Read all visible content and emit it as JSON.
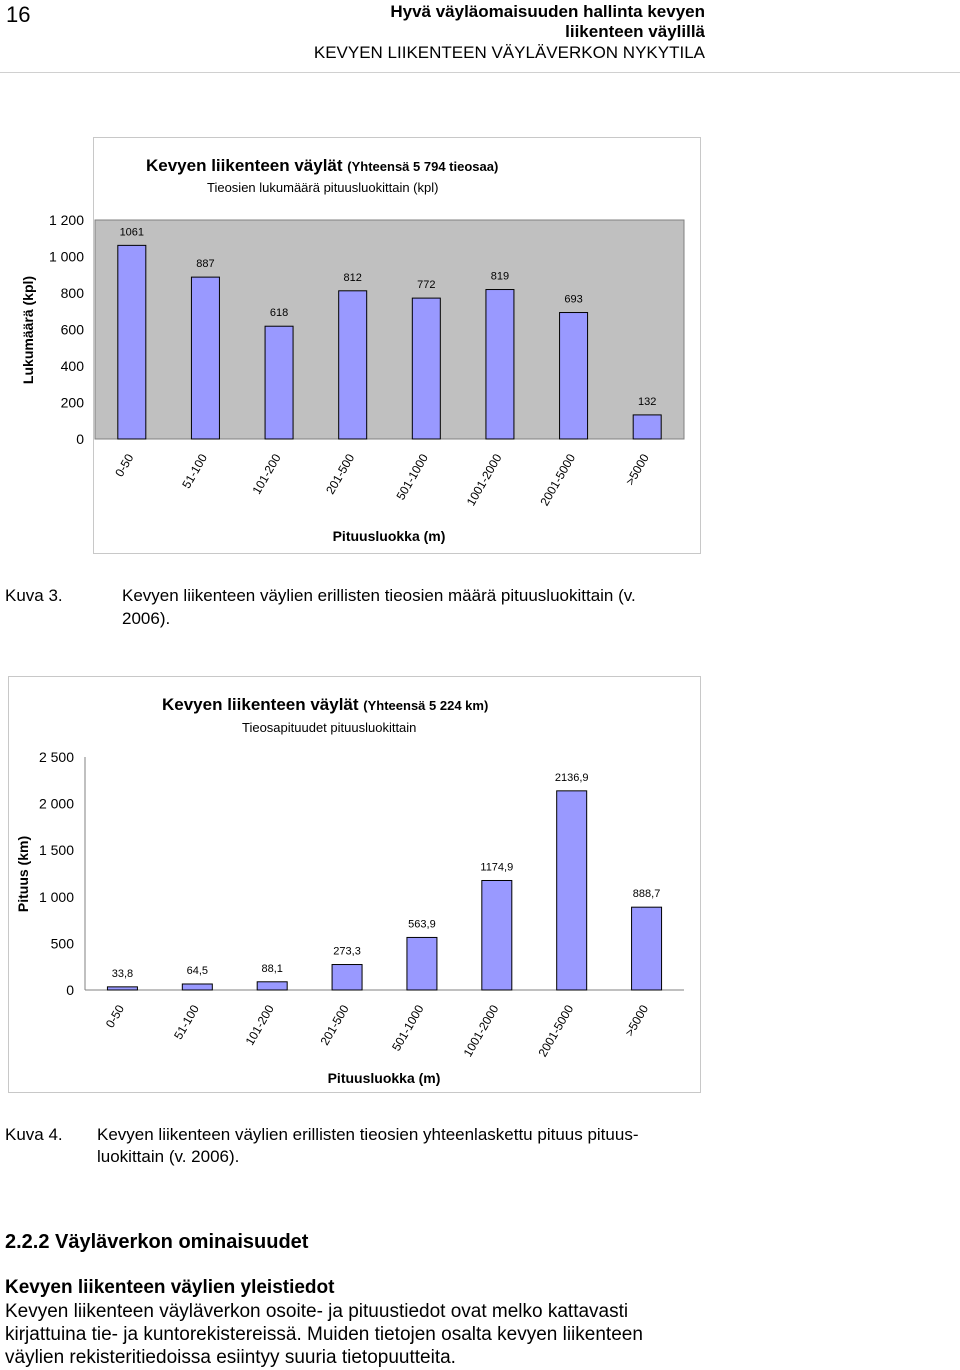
{
  "header": {
    "page_number": "16",
    "title_line1": "Hyvä väyläomaisuuden hallinta kevyen",
    "title_line2": "liikenteen väylillä",
    "title_line3": "KEVYEN LIIKENTEEN VÄYLÄVERKON NYKYTILA"
  },
  "figure1": {
    "title_main": "Kevyen liikenteen väylät",
    "title_paren": "(Yhteensä 5 794 tieosaa)",
    "subtitle": "Tieosien lukumäärä pituusluokittain (kpl)",
    "caption_label": "Kuva 3.",
    "caption_text": "Kevyen liikenteen väylien erillisten tieosien määrä pituusluokittain (v.",
    "caption_text2": "2006).",
    "chart_data": {
      "type": "bar",
      "categories": [
        "0-50",
        "51-100",
        "101-200",
        "201-500",
        "501-1000",
        "1001-2000",
        "2001-5000",
        ">5000"
      ],
      "values": [
        1061,
        887,
        618,
        812,
        772,
        819,
        693,
        132
      ],
      "value_labels": [
        "1061",
        "887",
        "618",
        "812",
        "772",
        "819",
        "693",
        "132"
      ],
      "xlabel": "Pituusluokka (m)",
      "ylabel": "Lukumäärä (kpl)",
      "ylim": [
        0,
        1200
      ],
      "yticks": [
        0,
        200,
        400,
        600,
        800,
        1000,
        1200
      ],
      "ytick_labels": [
        "0",
        "200",
        "400",
        "600",
        "800",
        "1 000",
        "1 200"
      ],
      "plot_bg": "#c0c0c0",
      "bar_color": "#9999ff",
      "grid": false,
      "legend": "none"
    }
  },
  "figure2": {
    "title_main": "Kevyen liikenteen väylät",
    "title_paren": "(Yhteensä 5 224 km)",
    "subtitle": "Tieosapituudet pituusluokittain",
    "caption_label": "Kuva 4.",
    "caption_text": "Kevyen liikenteen väylien erillisten tieosien yhteenlaskettu pituus pituus-",
    "caption_text2": "luokittain (v. 2006).",
    "chart_data": {
      "type": "bar",
      "categories": [
        "0-50",
        "51-100",
        "101-200",
        "201-500",
        "501-1000",
        "1001-2000",
        "2001-5000",
        ">5000"
      ],
      "values": [
        33.8,
        64.5,
        88.1,
        273.3,
        563.9,
        1174.9,
        2136.9,
        888.7
      ],
      "value_labels": [
        "33,8",
        "64,5",
        "88,1",
        "273,3",
        "563,9",
        "1174,9",
        "2136,9",
        "888,7"
      ],
      "xlabel": "Pituusluokka (m)",
      "ylabel": "Pituus (km)",
      "ylim": [
        0,
        2500
      ],
      "yticks": [
        0,
        500,
        1000,
        1500,
        2000,
        2500
      ],
      "ytick_labels": [
        "0",
        "500",
        "1 000",
        "1 500",
        "2 000",
        "2 500"
      ],
      "plot_bg": "#ffffff",
      "bar_color": "#9999ff",
      "grid": false,
      "legend": "none"
    }
  },
  "section": {
    "number_title": "2.2.2  Väyläverkon ominaisuudet",
    "subheading": "Kevyen liikenteen väylien yleistiedot",
    "para_line1": "Kevyen liikenteen väyläverkon osoite- ja pituustiedot ovat melko kattavasti",
    "para_line2": "kirjattuina tie- ja kuntorekistereissä. Muiden tietojen osalta kevyen liikenteen",
    "para_line3": "väylien rekisteritiedoissa esiintyy suuria tietopuutteita."
  }
}
